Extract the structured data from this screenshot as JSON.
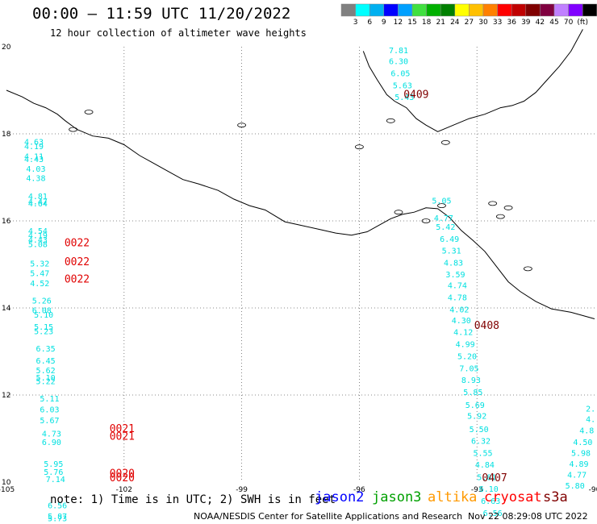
{
  "title": "00:00 — 11:59 UTC 11/20/2022",
  "subtitle": "12 hour collection of altimeter wave heights",
  "colorbar": {
    "colors": [
      "#808080",
      "#00ffff",
      "#00b0f0",
      "#0000ff",
      "#00a0ff",
      "#40e040",
      "#00b000",
      "#008000",
      "#ffff00",
      "#ffc000",
      "#ff8000",
      "#ff0000",
      "#c00000",
      "#800000",
      "#800040",
      "#c080ff",
      "#8000ff",
      "#000000"
    ],
    "labels": [
      "3",
      "6",
      "9",
      "12",
      "15",
      "18",
      "21",
      "24",
      "27",
      "30",
      "33",
      "36",
      "39",
      "42",
      "45",
      "70",
      "(ft)"
    ]
  },
  "axes": {
    "x_ticks": [
      "-105",
      "-102",
      "-99",
      "-96",
      "-93",
      "-90"
    ],
    "y_ticks": [
      "20",
      "18",
      "16",
      "14",
      "12",
      "10"
    ]
  },
  "colors": {
    "jason3_track": "#00e0e0",
    "cryosat": "#e00000",
    "s3a": "#800000",
    "coast": "#000000"
  },
  "track_left": {
    "points": [
      {
        "lon": -104.3,
        "lat": 17.75,
        "v": "4.63"
      },
      {
        "lon": -104.3,
        "lat": 17.65,
        "v": "4.19"
      },
      {
        "lon": -104.3,
        "lat": 17.42,
        "v": "4.11"
      },
      {
        "lon": -104.3,
        "lat": 17.35,
        "v": "4.43"
      },
      {
        "lon": -104.25,
        "lat": 17.13,
        "v": "4.03"
      },
      {
        "lon": -104.25,
        "lat": 16.92,
        "v": "4.38"
      },
      {
        "lon": -104.2,
        "lat": 16.5,
        "v": "4.81"
      },
      {
        "lon": -104.2,
        "lat": 16.38,
        "v": "4.47"
      },
      {
        "lon": -104.2,
        "lat": 16.33,
        "v": "4.64"
      },
      {
        "lon": -104.2,
        "lat": 15.7,
        "v": "4.54"
      },
      {
        "lon": -104.2,
        "lat": 15.6,
        "v": "4.19"
      },
      {
        "lon": -104.2,
        "lat": 15.5,
        "v": "4.43"
      },
      {
        "lon": -104.2,
        "lat": 15.4,
        "v": "5.08"
      },
      {
        "lon": -104.15,
        "lat": 14.95,
        "v": "5.32"
      },
      {
        "lon": -104.15,
        "lat": 14.73,
        "v": "5.47"
      },
      {
        "lon": -104.15,
        "lat": 14.5,
        "v": "4.52"
      },
      {
        "lon": -104.1,
        "lat": 14.1,
        "v": "5.26"
      },
      {
        "lon": -104.1,
        "lat": 13.88,
        "v": "6.08"
      },
      {
        "lon": -104.05,
        "lat": 13.78,
        "v": "5.10"
      },
      {
        "lon": -104.05,
        "lat": 13.5,
        "v": "5.15"
      },
      {
        "lon": -104.05,
        "lat": 13.4,
        "v": "5.23"
      },
      {
        "lon": -104.0,
        "lat": 13.0,
        "v": "6.35"
      },
      {
        "lon": -104.0,
        "lat": 12.72,
        "v": "6.45"
      },
      {
        "lon": -104.0,
        "lat": 12.5,
        "v": "5.62"
      },
      {
        "lon": -104.0,
        "lat": 12.33,
        "v": "5.10"
      },
      {
        "lon": -104.0,
        "lat": 12.25,
        "v": "5.22"
      },
      {
        "lon": -103.9,
        "lat": 11.85,
        "v": "5.11"
      },
      {
        "lon": -103.9,
        "lat": 11.6,
        "v": "6.03"
      },
      {
        "lon": -103.9,
        "lat": 11.35,
        "v": "5.67"
      },
      {
        "lon": -103.85,
        "lat": 11.05,
        "v": "4.73"
      },
      {
        "lon": -103.85,
        "lat": 10.85,
        "v": "6.90"
      },
      {
        "lon": -103.8,
        "lat": 10.35,
        "v": "5.95"
      },
      {
        "lon": -103.8,
        "lat": 10.17,
        "v": "5.76"
      },
      {
        "lon": -103.75,
        "lat": 10.0,
        "v": "7.14"
      },
      {
        "lon": -103.7,
        "lat": 9.4,
        "v": "6.56"
      },
      {
        "lon": -103.7,
        "lat": 9.15,
        "v": "5.87"
      },
      {
        "lon": -103.7,
        "lat": 9.1,
        "v": "5.73"
      }
    ]
  },
  "track_right": {
    "points": [
      {
        "lon": -93.9,
        "lat": 16.4,
        "v": "5.05"
      },
      {
        "lon": -93.85,
        "lat": 16.0,
        "v": "4.77"
      },
      {
        "lon": -93.8,
        "lat": 15.8,
        "v": "5.42"
      },
      {
        "lon": -93.7,
        "lat": 15.52,
        "v": "6.49"
      },
      {
        "lon": -93.65,
        "lat": 15.25,
        "v": "5.31"
      },
      {
        "lon": -93.6,
        "lat": 14.97,
        "v": "4.83"
      },
      {
        "lon": -93.55,
        "lat": 14.7,
        "v": "3.59"
      },
      {
        "lon": -93.5,
        "lat": 14.45,
        "v": "4.74"
      },
      {
        "lon": -93.5,
        "lat": 14.18,
        "v": "4.78"
      },
      {
        "lon": -93.45,
        "lat": 13.9,
        "v": "4.02"
      },
      {
        "lon": -93.4,
        "lat": 13.65,
        "v": "4.30"
      },
      {
        "lon": -93.35,
        "lat": 13.38,
        "v": "4.12"
      },
      {
        "lon": -93.3,
        "lat": 13.1,
        "v": "4.99"
      },
      {
        "lon": -93.25,
        "lat": 12.82,
        "v": "5.20"
      },
      {
        "lon": -93.2,
        "lat": 12.55,
        "v": "7.05"
      },
      {
        "lon": -93.15,
        "lat": 12.28,
        "v": "8.93"
      },
      {
        "lon": -93.1,
        "lat": 12.0,
        "v": "5.85"
      },
      {
        "lon": -93.05,
        "lat": 11.7,
        "v": "5.69"
      },
      {
        "lon": -93.0,
        "lat": 11.45,
        "v": "5.92"
      },
      {
        "lon": -92.95,
        "lat": 11.15,
        "v": "5.50"
      },
      {
        "lon": -92.9,
        "lat": 10.88,
        "v": "6.32"
      },
      {
        "lon": -92.85,
        "lat": 10.6,
        "v": "5.55"
      },
      {
        "lon": -92.8,
        "lat": 10.33,
        "v": "4.84"
      },
      {
        "lon": -92.75,
        "lat": 10.05,
        "v": "5.81"
      },
      {
        "lon": -92.7,
        "lat": 9.78,
        "v": "6.10"
      },
      {
        "lon": -92.65,
        "lat": 9.5,
        "v": "6.63"
      },
      {
        "lon": -92.6,
        "lat": 9.22,
        "v": "6.56"
      }
    ]
  },
  "track_top": {
    "points": [
      {
        "lon": -95.0,
        "lat": 19.85,
        "v": "7.81"
      },
      {
        "lon": -95.0,
        "lat": 19.6,
        "v": "6.30"
      },
      {
        "lon": -94.95,
        "lat": 19.32,
        "v": "6.05"
      },
      {
        "lon": -94.9,
        "lat": 19.05,
        "v": "5.63"
      },
      {
        "lon": -94.85,
        "lat": 18.78,
        "v": "5.43"
      }
    ]
  },
  "track_edge": {
    "points": [
      {
        "lon": -90.1,
        "lat": 11.62,
        "v": "2."
      },
      {
        "lon": -90.1,
        "lat": 11.38,
        "v": "4."
      },
      {
        "lon": -90.2,
        "lat": 11.12,
        "v": "4.8"
      },
      {
        "lon": -90.3,
        "lat": 10.85,
        "v": "4.50"
      },
      {
        "lon": -90.35,
        "lat": 10.6,
        "v": "5.98"
      },
      {
        "lon": -90.4,
        "lat": 10.35,
        "v": "4.89"
      },
      {
        "lon": -90.45,
        "lat": 10.1,
        "v": "4.77"
      },
      {
        "lon": -90.5,
        "lat": 9.85,
        "v": "5.80"
      }
    ]
  },
  "time_labels": [
    {
      "lon": -103.2,
      "lat": 15.42,
      "v": "0022",
      "sat": "cryosat"
    },
    {
      "lon": -103.2,
      "lat": 14.98,
      "v": "0022",
      "sat": "cryosat"
    },
    {
      "lon": -103.2,
      "lat": 14.58,
      "v": "0022",
      "sat": "cryosat"
    },
    {
      "lon": -102.05,
      "lat": 11.15,
      "v": "0021",
      "sat": "cryosat"
    },
    {
      "lon": -102.05,
      "lat": 10.97,
      "v": "0021",
      "sat": "cryosat"
    },
    {
      "lon": -102.05,
      "lat": 10.12,
      "v": "0020",
      "sat": "cryosat"
    },
    {
      "lon": -102.05,
      "lat": 10.02,
      "v": "0020",
      "sat": "cryosat"
    },
    {
      "lon": -94.55,
      "lat": 18.82,
      "v": "0409",
      "sat": "s3a"
    },
    {
      "lon": -92.75,
      "lat": 13.52,
      "v": "0408",
      "sat": "s3a"
    },
    {
      "lon": -92.55,
      "lat": 10.02,
      "v": "0407",
      "sat": "s3a"
    }
  ],
  "note": "note: 1) Time is in UTC; 2) SWH is in feet",
  "legend": [
    {
      "name": "jason2",
      "color": "#0000ff"
    },
    {
      "name": "jason3",
      "color": "#00a000"
    },
    {
      "name": "altika",
      "color": "#ff9900"
    },
    {
      "name": "cryosat",
      "color": "#ff0000"
    },
    {
      "name": "s3a",
      "color": "#800000"
    }
  ],
  "footer_credit": "NOAA/NESDIS Center for Satellite Applications and Research",
  "footer_time": "Nov 22 08:29:08 UTC 2022"
}
